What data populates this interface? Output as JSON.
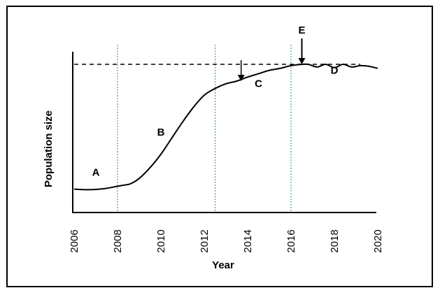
{
  "chart_data": {
    "type": "line",
    "title": "",
    "xlabel": "Year",
    "ylabel": "Population size",
    "xlim": [
      2006,
      2020
    ],
    "x_ticks": [
      2006,
      2008,
      2010,
      2012,
      2014,
      2016,
      2018,
      2020
    ],
    "y_ticks": [],
    "grid": false,
    "series": [
      {
        "x": [
          2006.0,
          2006.5,
          2007.0,
          2007.5,
          2008.0,
          2008.3,
          2008.6,
          2009.0,
          2009.5,
          2010.0,
          2010.5,
          2011.0,
          2011.5,
          2012.0,
          2012.5,
          2013.0,
          2013.5,
          2014.0,
          2014.5,
          2015.0,
          2015.5,
          2016.0,
          2016.5,
          2016.8,
          2017.2,
          2017.6,
          2018.0,
          2018.4,
          2018.8,
          2019.2,
          2019.6,
          2020.0
        ],
        "y": [
          0.07,
          0.066,
          0.068,
          0.076,
          0.092,
          0.1,
          0.11,
          0.15,
          0.23,
          0.33,
          0.45,
          0.57,
          0.68,
          0.77,
          0.82,
          0.855,
          0.875,
          0.905,
          0.93,
          0.955,
          0.97,
          0.99,
          1.0,
          1.0,
          0.98,
          1.0,
          0.975,
          1.0,
          0.98,
          0.99,
          0.985,
          0.97
        ]
      }
    ],
    "carrying_capacity_line": {
      "y": 1.0,
      "style": "dashed"
    },
    "phase_dividers": [
      2008.0,
      2012.5,
      2016.0
    ],
    "divider_color": "#2a9d4b",
    "arrows": [
      {
        "x": 2013.7,
        "label": ""
      },
      {
        "x": 2016.5,
        "label": "E"
      }
    ],
    "region_labels": [
      {
        "text": "A",
        "x": 2007.0,
        "y": 0.17
      },
      {
        "text": "B",
        "x": 2010.0,
        "y": 0.47
      },
      {
        "text": "C",
        "x": 2014.5,
        "y": 0.83
      },
      {
        "text": "D",
        "x": 2018.0,
        "y": 0.93
      }
    ]
  }
}
